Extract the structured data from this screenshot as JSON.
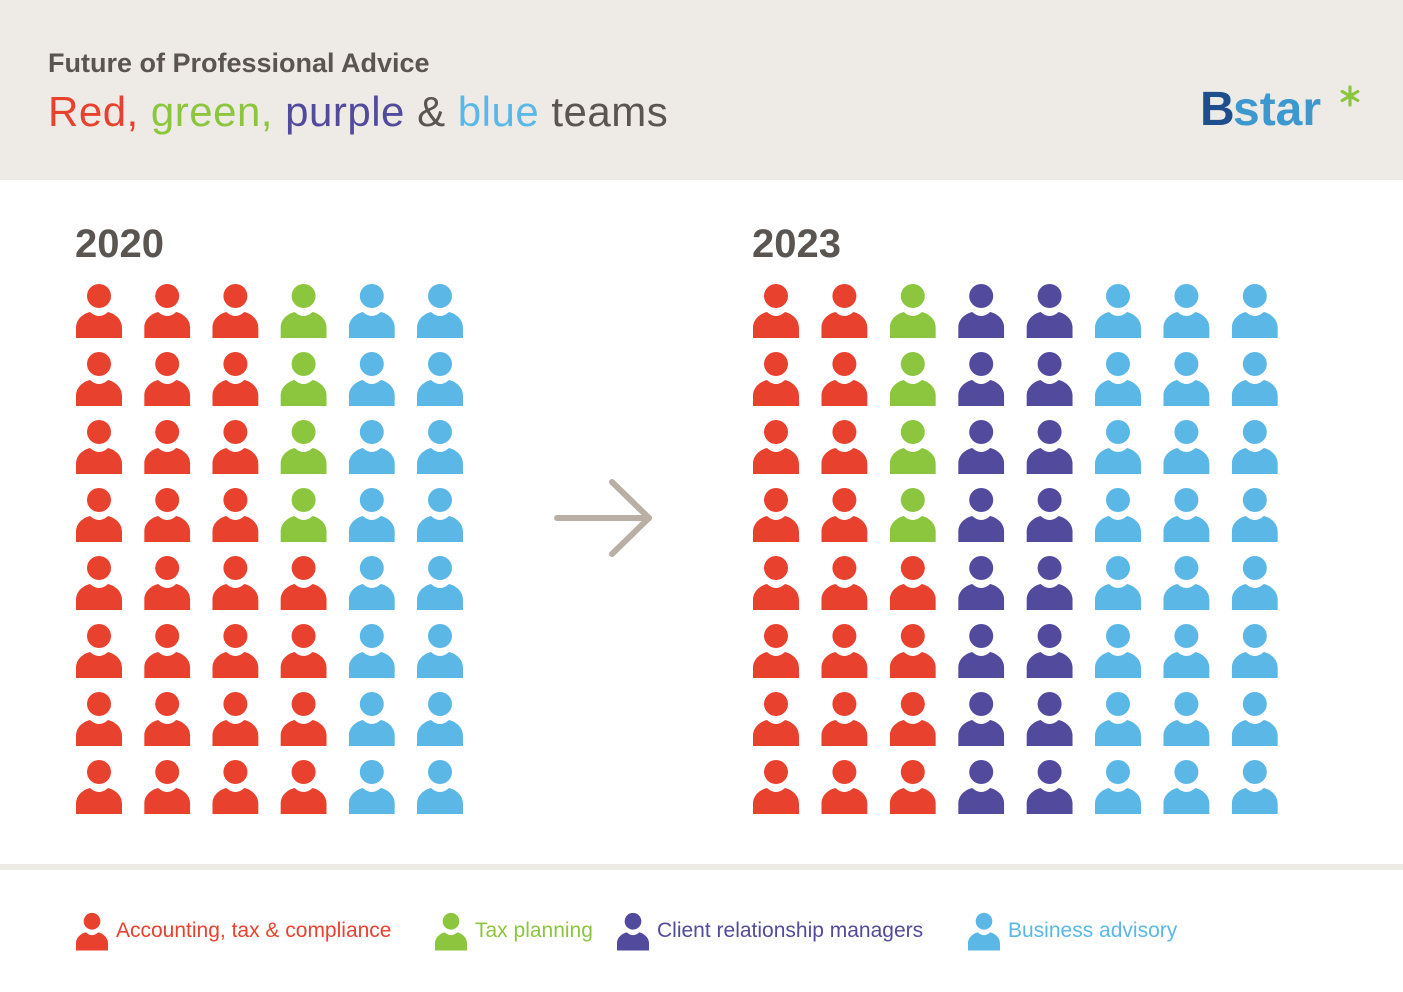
{
  "header": {
    "kicker": "Future of Professional Advice",
    "title_parts": [
      {
        "text": "Red,",
        "color": "#e8412e"
      },
      {
        "text": "green,",
        "color": "#8cc63f"
      },
      {
        "text": "purple",
        "color": "#524a9c"
      },
      {
        "text": "&",
        "color": "#5a5550"
      },
      {
        "text": "blue",
        "color": "#5bb8e6"
      },
      {
        "text": "teams",
        "color": "#5a5550"
      }
    ],
    "logo": {
      "b": "B",
      "rest": "star",
      "asterisk": "*"
    }
  },
  "chart_data": [
    {
      "type": "pictogram",
      "title": "2020",
      "rows": 8,
      "columns": [
        {
          "team": "Accounting, tax & compliance",
          "count": 8
        },
        {
          "team": "Accounting, tax & compliance",
          "count": 8
        },
        {
          "team": "Accounting, tax & compliance",
          "count": 8
        },
        {
          "team": "Tax planning",
          "count": 4,
          "then": "Accounting, tax & compliance",
          "then_count": 4
        },
        {
          "team": "Business advisory",
          "count": 8
        },
        {
          "team": "Business advisory",
          "count": 8
        }
      ],
      "totals": {
        "Accounting, tax & compliance": 28,
        "Tax planning": 4,
        "Client relationship managers": 0,
        "Business advisory": 16
      }
    },
    {
      "type": "pictogram",
      "title": "2023",
      "rows": 8,
      "columns": [
        {
          "team": "Accounting, tax & compliance",
          "count": 8
        },
        {
          "team": "Accounting, tax & compliance",
          "count": 8
        },
        {
          "team": "Tax planning",
          "count": 4,
          "then": "Accounting, tax & compliance",
          "then_count": 4
        },
        {
          "team": "Client relationship managers",
          "count": 8
        },
        {
          "team": "Client relationship managers",
          "count": 8
        },
        {
          "team": "Business advisory",
          "count": 8
        },
        {
          "team": "Business advisory",
          "count": 8
        },
        {
          "team": "Business advisory",
          "count": 8
        }
      ],
      "totals": {
        "Accounting, tax & compliance": 20,
        "Tax planning": 4,
        "Client relationship managers": 16,
        "Business advisory": 24
      }
    }
  ],
  "legend": [
    {
      "label": "Accounting, tax & compliance",
      "color": "#e8412e"
    },
    {
      "label": "Tax planning",
      "color": "#8cc63f"
    },
    {
      "label": "Client relationship managers",
      "color": "#524a9c"
    },
    {
      "label": "Business advisory",
      "color": "#5bb8e6"
    }
  ],
  "colors": {
    "Accounting, tax & compliance": "#e8412e",
    "Tax planning": "#8cc63f",
    "Client relationship managers": "#524a9c",
    "Business advisory": "#5bb8e6",
    "arrow": "#b9afa4",
    "logo_asterisk": "#8cc63f"
  },
  "icons": {
    "person": "person-icon",
    "arrow": "arrow-right-icon"
  }
}
